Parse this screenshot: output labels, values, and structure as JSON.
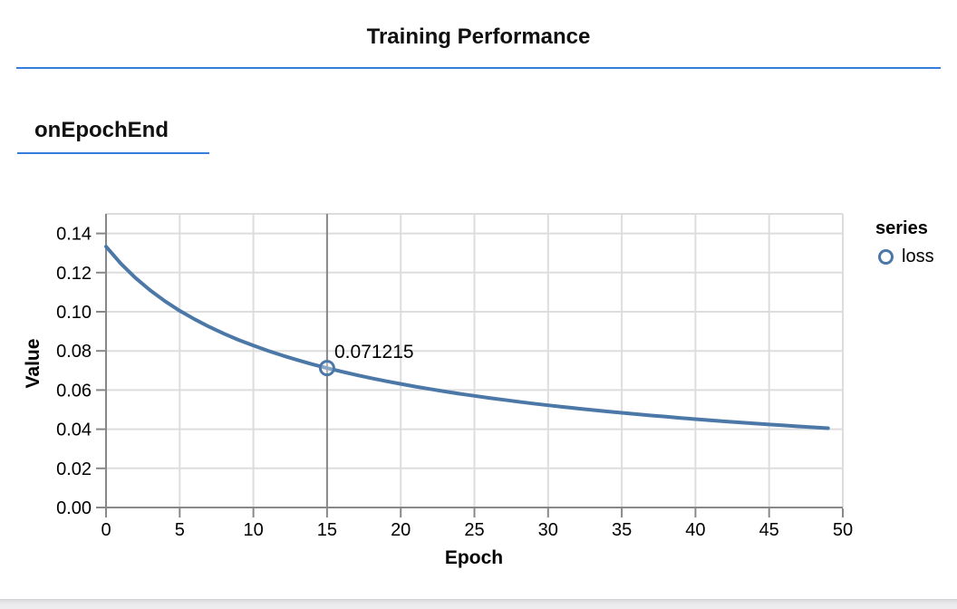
{
  "page": {
    "title": "Training Performance",
    "section_label": "onEpochEnd"
  },
  "colors": {
    "accent_underline": "#357edd",
    "series_line": "#4c78a8",
    "grid": "#dddddd",
    "axis": "#888888",
    "hover_rule": "#888888",
    "text": "#000000",
    "bottom_bar": "#ececee"
  },
  "chart_data": {
    "type": "line",
    "title": "Training Performance",
    "subtitle": "onEpochEnd",
    "xlabel": "Epoch",
    "ylabel": "Value",
    "xlim": [
      0,
      50
    ],
    "ylim": [
      0,
      0.15
    ],
    "grid": true,
    "x_ticks": [
      0,
      5,
      10,
      15,
      20,
      25,
      30,
      35,
      40,
      45,
      50
    ],
    "x_tick_labels": [
      "0",
      "5",
      "10",
      "15",
      "20",
      "25",
      "30",
      "35",
      "40",
      "45",
      "50"
    ],
    "y_ticks": [
      0,
      0.02,
      0.04,
      0.06,
      0.08,
      0.1,
      0.12,
      0.14
    ],
    "y_tick_labels": [
      "0.00",
      "0.02",
      "0.04",
      "0.06",
      "0.08",
      "0.10",
      "0.12",
      "0.14"
    ],
    "legend": {
      "title": "series",
      "position": "right",
      "items": [
        {
          "label": "loss",
          "marker": "open-circle",
          "color": "#4c78a8"
        }
      ]
    },
    "highlight": {
      "x": 15,
      "value": 0.071215,
      "label": "0.071215"
    },
    "series": [
      {
        "name": "loss",
        "x": [
          0,
          1,
          2,
          3,
          4,
          5,
          6,
          7,
          8,
          9,
          10,
          11,
          12,
          13,
          14,
          15,
          16,
          17,
          18,
          19,
          20,
          21,
          22,
          23,
          24,
          25,
          26,
          27,
          28,
          29,
          30,
          31,
          32,
          33,
          34,
          35,
          36,
          37,
          38,
          39,
          40,
          41,
          42,
          43,
          44,
          45,
          46,
          47,
          48,
          49
        ],
        "values": [
          0.13329,
          0.12465,
          0.11728,
          0.11094,
          0.10541,
          0.10053,
          0.09619,
          0.09231,
          0.08881,
          0.08562,
          0.08271,
          0.08004,
          0.07759,
          0.07532,
          0.07321,
          0.071215,
          0.06941,
          0.06769,
          0.06608,
          0.06456,
          0.06313,
          0.06177,
          0.06049,
          0.05928,
          0.05812,
          0.05703,
          0.05598,
          0.05498,
          0.05402,
          0.05311,
          0.05224,
          0.05139,
          0.05059,
          0.04981,
          0.04907,
          0.04836,
          0.04767,
          0.04701,
          0.04637,
          0.04574,
          0.04514,
          0.04456,
          0.044,
          0.04346,
          0.04293,
          0.04242,
          0.04193,
          0.04145,
          0.04098,
          0.04053
        ]
      }
    ]
  }
}
